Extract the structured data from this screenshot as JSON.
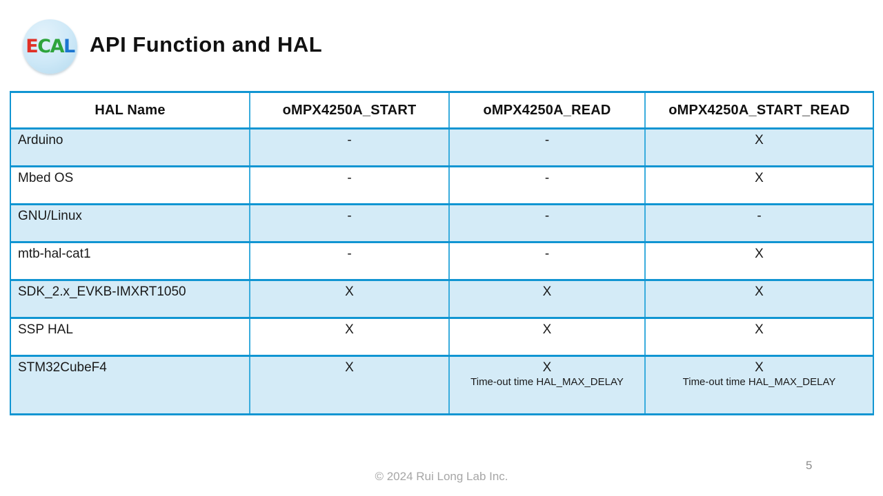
{
  "slide": {
    "title": "API Function and HAL"
  },
  "logo": {
    "letters": [
      "E",
      "C",
      "A",
      "L"
    ],
    "letter_colors": [
      "#e03127",
      "#2ea43c",
      "#2ea43c",
      "#1b75d0"
    ],
    "background_color": "#cde8f7"
  },
  "table": {
    "headers": [
      "HAL Name",
      "oMPX4250A_START",
      "oMPX4250A_READ",
      "oMPX4250A_START_READ"
    ],
    "rows": [
      {
        "name": "Arduino",
        "start": "-",
        "read": "-",
        "read_note": "",
        "start_read": "X",
        "start_read_note": ""
      },
      {
        "name": "Mbed OS",
        "start": "-",
        "read": "-",
        "read_note": "",
        "start_read": "X",
        "start_read_note": ""
      },
      {
        "name": "GNU/Linux",
        "start": "-",
        "read": "-",
        "read_note": "",
        "start_read": "-",
        "start_read_note": ""
      },
      {
        "name": "mtb-hal-cat1",
        "start": "-",
        "read": "-",
        "read_note": "",
        "start_read": "X",
        "start_read_note": ""
      },
      {
        "name": "SDK_2.x_EVKB-IMXRT1050",
        "start": "X",
        "read": "X",
        "read_note": "",
        "start_read": "X",
        "start_read_note": ""
      },
      {
        "name": "SSP HAL",
        "start": "X",
        "read": "X",
        "read_note": "",
        "start_read": "X",
        "start_read_note": ""
      },
      {
        "name": "STM32CubeF4",
        "start": "X",
        "read": "X",
        "read_note": "Time-out time HAL_MAX_DELAY",
        "start_read": "X",
        "start_read_note": "Time-out time HAL_MAX_DELAY"
      }
    ]
  },
  "footer": {
    "copyright": "© 2024 Rui Long Lab Inc.",
    "page_number": "5"
  },
  "colors": {
    "border_horizontal": "#1095d2",
    "border_vertical": "#38acdd",
    "row_alt_fill": "#d4ebf7",
    "footer_text": "#a6a6a6"
  }
}
